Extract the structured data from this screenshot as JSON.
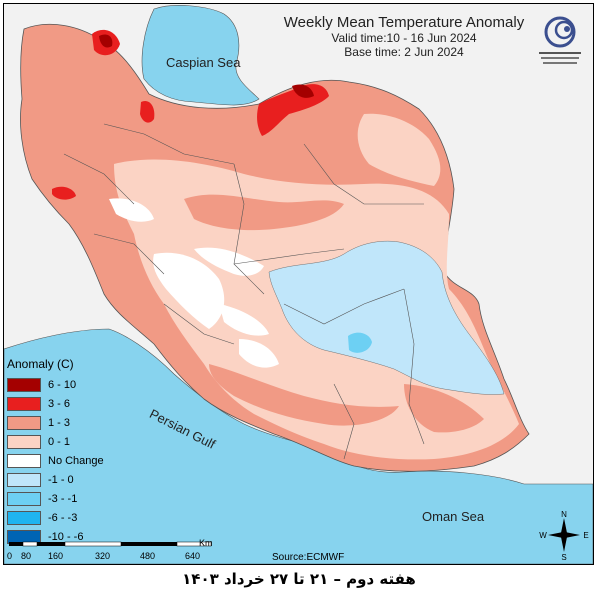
{
  "title": "Weekly Mean Temperature Anomaly",
  "valid_time": "Valid time:10 - 16 Jun 2024",
  "base_time": "Base time: 2 Jun 2024",
  "seas": {
    "caspian": "Caspian Sea",
    "persian_gulf": "Persian Gulf",
    "oman": "Oman Sea"
  },
  "legend": {
    "title": "Anomaly (C)",
    "items": [
      {
        "label": "6 - 10",
        "color": "#a40000"
      },
      {
        "label": "3 - 6",
        "color": "#e81f1f"
      },
      {
        "label": "1 - 3",
        "color": "#f19a85"
      },
      {
        "label": "0 - 1",
        "color": "#fbd3c4"
      },
      {
        "label": "No Change",
        "color": "#ffffff"
      },
      {
        "label": "-1 - 0",
        "color": "#c0e6fa"
      },
      {
        "label": "-3 - -1",
        "color": "#6dd0f3"
      },
      {
        "label": "-6 - -3",
        "color": "#1fb4ef"
      },
      {
        "label": "-10 - -6",
        "color": "#0064b4"
      }
    ]
  },
  "scale": {
    "ticks": [
      "0",
      "80",
      "160",
      "320",
      "480",
      "640"
    ],
    "unit": "Km"
  },
  "source": "Source:ECMWF",
  "compass": {
    "n": "N",
    "s": "S",
    "e": "E",
    "w": "W"
  },
  "footer": "هفته دوم – ۲۱ تا ۲۷ خرداد ۱۴۰۳"
}
